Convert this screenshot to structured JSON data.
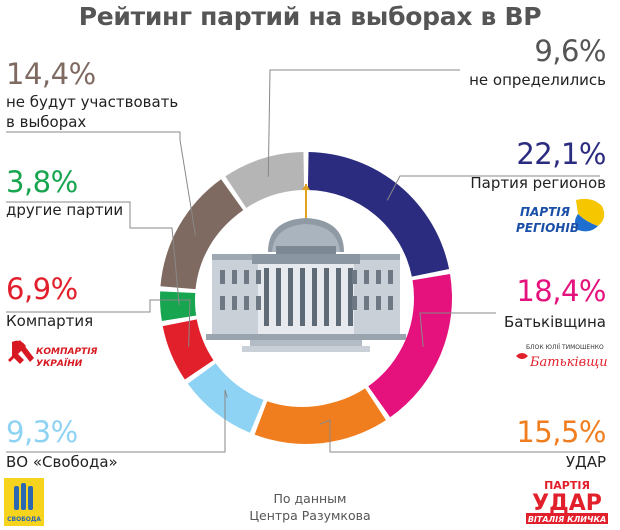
{
  "title": "Рейтинг партий на выборах в ВР",
  "source_line1": "По данным",
  "source_line2": "Центра Разумкова",
  "chart_data": {
    "type": "pie",
    "title": "Рейтинг партий на выборах в ВР",
    "slices": [
      {
        "name": "Партия регионов",
        "value": 22.1,
        "label": "22,1%",
        "color": "#2b2c7f"
      },
      {
        "name": "Батьківщина",
        "value": 18.4,
        "label": "18,4%",
        "color": "#e5127e"
      },
      {
        "name": "УДАР",
        "value": 15.5,
        "label": "15,5%",
        "color": "#f07e1f"
      },
      {
        "name": "ВО «Свобода»",
        "value": 9.3,
        "label": "9,3%",
        "color": "#8fd3f4"
      },
      {
        "name": "Компартия",
        "value": 6.9,
        "label": "6,9%",
        "color": "#e2202c"
      },
      {
        "name": "другие партии",
        "value": 3.8,
        "label": "3,8%",
        "color": "#18a550"
      },
      {
        "name": "не будут участвовать в выборах",
        "value": 14.4,
        "label": "14,4%",
        "color": "#7f6a62"
      },
      {
        "name": "не определились",
        "value": 9.6,
        "label": "9,6%",
        "color": "#b5b5b5"
      }
    ]
  },
  "labels": {
    "undecided": {
      "pct": "9,6%",
      "line1": "не определились"
    },
    "regions": {
      "pct": "22,1%",
      "line1": "Партия регионов"
    },
    "batk": {
      "pct": "18,4%",
      "line1": "Батьківщина"
    },
    "udar": {
      "pct": "15,5%",
      "line1": "УДАР"
    },
    "notvote": {
      "pct": "14,4%",
      "line1": "не будут участвовать",
      "line2": "в выборах"
    },
    "others": {
      "pct": "3,8%",
      "line1": "другие партии"
    },
    "kpu": {
      "pct": "6,9%",
      "line1": "Компартия"
    },
    "svoboda": {
      "pct": "9,3%",
      "line1": "ВО «Свобода»"
    }
  },
  "logos": {
    "regions_line1": "ПАРТІЯ",
    "regions_line2": "РЕГІОНІВ",
    "kpu_line1": "КОМПАРТІЯ",
    "kpu_line2": "УКРАЇНИ",
    "batk_top": "БЛОК ЮЛІЇ ТИМОШЕНКО",
    "batk_main": "Батьківщина",
    "udar_line1": "ПАРТІЯ",
    "udar_line2": "УДАР",
    "udar_line3": "ВІТАЛІЯ КЛИЧКА",
    "svoboda_text": "СВОБОДА"
  }
}
